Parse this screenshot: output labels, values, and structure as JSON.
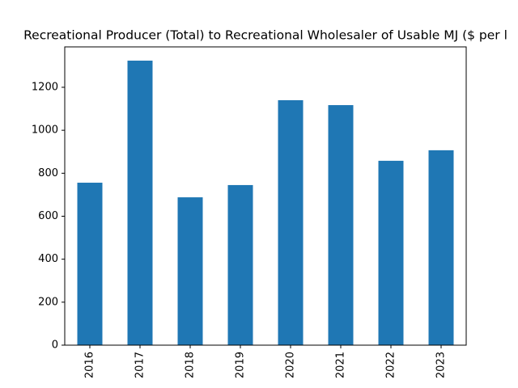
{
  "chart_data": {
    "type": "bar",
    "title": "Recreational Producer (Total) to Recreational Wholesaler of Usable MJ ($ per l",
    "categories": [
      "2016",
      "2017",
      "2018",
      "2019",
      "2020",
      "2021",
      "2022",
      "2023"
    ],
    "values": [
      756,
      1324,
      688,
      745,
      1140,
      1117,
      858,
      907
    ],
    "color": "#1f77b4",
    "ylim": [
      0,
      1388
    ],
    "yticks": [
      0,
      200,
      400,
      600,
      800,
      1000,
      1200
    ],
    "grid": false
  }
}
